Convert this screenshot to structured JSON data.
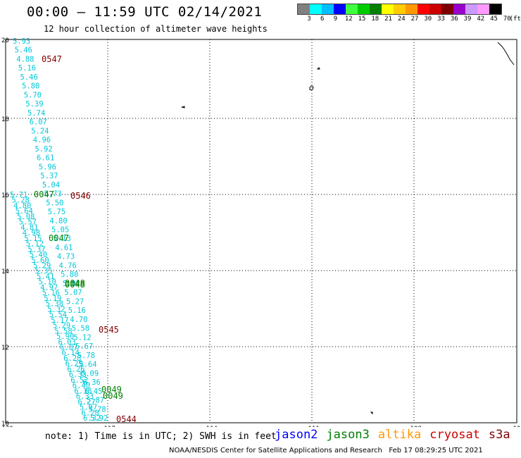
{
  "header": {
    "title": "00:00 – 11:59 UTC 02/14/2021",
    "subtitle": "12 hour collection of altimeter wave heights"
  },
  "colorbar": {
    "colors": [
      "#808080",
      "#00ffff",
      "#00bfff",
      "#0000ff",
      "#40ff40",
      "#00cc00",
      "#008000",
      "#ffff00",
      "#ffcc00",
      "#ff9900",
      "#ff0000",
      "#cc0000",
      "#800000",
      "#9900cc",
      "#cc99ff",
      "#ff99ff",
      "#000000"
    ],
    "labels": [
      "3",
      "6",
      "9",
      "12",
      "15",
      "18",
      "21",
      "24",
      "27",
      "30",
      "33",
      "36",
      "39",
      "42",
      "45",
      "70",
      "(ft)"
    ]
  },
  "map": {
    "lon_range": [
      -120,
      -105
    ],
    "lat_range": [
      10,
      20
    ],
    "lon_ticks": [
      "-120",
      "-117",
      "-114",
      "-111",
      "-108",
      "-105"
    ],
    "lat_ticks": [
      "20",
      "18",
      "16",
      "14",
      "12",
      "10"
    ]
  },
  "swh_values": {
    "track_left": [
      "5.93",
      "5.46",
      "4.88",
      "5.16",
      "5.46",
      "5.80",
      "5.70",
      "5.39",
      "5.74",
      "6.07",
      "5.24",
      "4.96",
      "5.92",
      "6.61",
      "5.96",
      "5.37",
      "5.04",
      "5.73",
      "5.50",
      "5.75",
      "4.80",
      "5.05",
      "5.13",
      "4.61",
      "4.73",
      "4.76",
      "5.80",
      "5.02",
      "5.07",
      "5.27",
      "5.16",
      "4.70",
      "5.58",
      "5.12",
      "5.67",
      "5.78",
      "5.64",
      "6.09",
      "6.36",
      "6.45",
      "5.87",
      "5.78",
      "5.92"
    ],
    "track_right": [
      "5.71",
      "5.28",
      "4.80",
      "5.64",
      "5.08",
      "5.57",
      "4.81",
      "4.98",
      "5.15",
      "5.12",
      "5.37",
      "5.40",
      "5.60",
      "5.29",
      "5.35",
      "5.41",
      "5.10",
      "4.97",
      "5.16",
      "5.19",
      "5.38",
      "5.32",
      "5.54",
      "5.17",
      "5.29",
      "5.58",
      "5.90",
      "6.03",
      "6.07",
      "6.14",
      "6.28",
      "6.29",
      "6.26",
      "6.33",
      "6.52",
      "6.40",
      "6.38",
      "6.33",
      "6.27",
      "5.97",
      "6.28",
      "6.32"
    ]
  },
  "passes": [
    {
      "label": "0547",
      "color": "#800000"
    },
    {
      "label": "0047",
      "color": "#008000"
    },
    {
      "label": "0546",
      "color": "#800000"
    },
    {
      "label": "0047",
      "color": "#008000"
    },
    {
      "label": "0048",
      "color": "#008000"
    },
    {
      "label": "0048",
      "color": "#008000"
    },
    {
      "label": "0545",
      "color": "#800000"
    },
    {
      "label": "0049",
      "color": "#008000"
    },
    {
      "label": "0049",
      "color": "#008000"
    },
    {
      "label": "0544",
      "color": "#800000"
    }
  ],
  "footer": {
    "note": "note: 1) Time is in UTC; 2) SWH is in feet",
    "legend": [
      {
        "label": "jason2",
        "color": "#0000ff"
      },
      {
        "label": "jason3",
        "color": "#008000"
      },
      {
        "label": "altika",
        "color": "#ff9900"
      },
      {
        "label": "cryosat",
        "color": "#cc0000"
      },
      {
        "label": "s3a",
        "color": "#800000"
      }
    ],
    "credit": "NOAA/NESDIS Center for Satellite Applications and Research   Feb 17 08:29:25 UTC 2021"
  }
}
